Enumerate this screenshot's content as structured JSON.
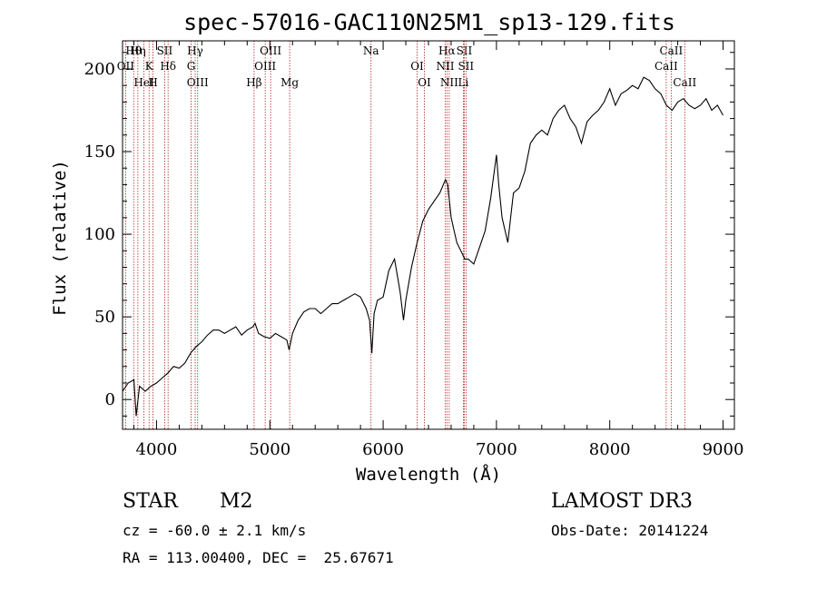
{
  "chart_data": {
    "type": "line",
    "title": "spec-57016-GAC110N25M1_sp13-129.fits",
    "xlabel": "Wavelength (Å)",
    "ylabel": "Flux (relative)",
    "xlim": [
      3700,
      9100
    ],
    "ylim": [
      -18,
      217
    ],
    "xticks": [
      4000,
      5000,
      6000,
      7000,
      8000,
      9000
    ],
    "yticks": [
      0,
      50,
      100,
      150,
      200
    ],
    "ytick_first_label": "200",
    "series": [
      {
        "name": "flux",
        "color": "#000000",
        "x": [
          3700,
          3750,
          3800,
          3820,
          3850,
          3900,
          3950,
          4000,
          4050,
          4100,
          4150,
          4200,
          4250,
          4300,
          4350,
          4400,
          4450,
          4500,
          4550,
          4600,
          4650,
          4700,
          4750,
          4800,
          4850,
          4870,
          4900,
          4950,
          5000,
          5050,
          5100,
          5150,
          5170,
          5200,
          5250,
          5300,
          5350,
          5400,
          5450,
          5500,
          5550,
          5600,
          5650,
          5700,
          5750,
          5800,
          5850,
          5880,
          5900,
          5920,
          5950,
          6000,
          6050,
          6100,
          6150,
          6180,
          6200,
          6250,
          6300,
          6350,
          6400,
          6450,
          6500,
          6550,
          6570,
          6600,
          6650,
          6700,
          6720,
          6750,
          6800,
          6850,
          6900,
          6950,
          7000,
          7020,
          7050,
          7100,
          7150,
          7200,
          7250,
          7300,
          7350,
          7400,
          7450,
          7500,
          7550,
          7600,
          7650,
          7700,
          7750,
          7800,
          7850,
          7900,
          7950,
          8000,
          8050,
          8100,
          8150,
          8200,
          8250,
          8300,
          8350,
          8400,
          8450,
          8500,
          8550,
          8600,
          8650,
          8700,
          8750,
          8800,
          8850,
          8900,
          8950,
          9000
        ],
        "y": [
          5,
          10,
          12,
          -10,
          8,
          5,
          8,
          10,
          13,
          16,
          20,
          19,
          22,
          28,
          32,
          35,
          39,
          42,
          42,
          40,
          42,
          44,
          39,
          42,
          44,
          46,
          40,
          38,
          37,
          40,
          38,
          36,
          30,
          40,
          48,
          53,
          55,
          55,
          52,
          55,
          58,
          58,
          60,
          62,
          64,
          62,
          55,
          48,
          28,
          52,
          60,
          62,
          78,
          85,
          65,
          48,
          60,
          80,
          95,
          108,
          115,
          120,
          125,
          133,
          130,
          110,
          95,
          88,
          85,
          85,
          82,
          92,
          102,
          122,
          148,
          130,
          110,
          95,
          125,
          128,
          138,
          155,
          160,
          163,
          160,
          170,
          175,
          178,
          170,
          165,
          155,
          168,
          172,
          175,
          180,
          188,
          178,
          185,
          187,
          190,
          188,
          195,
          193,
          188,
          185,
          178,
          175,
          180,
          182,
          178,
          176,
          178,
          182,
          175,
          178,
          172
        ]
      }
    ],
    "spectral_lines": [
      {
        "label": "Hθ",
        "x": 3798
      },
      {
        "label": "OII",
        "x": 3727
      },
      {
        "label": "HeI",
        "x": 3889
      },
      {
        "label": "Hη",
        "x": 3835
      },
      {
        "label": "K",
        "x": 3934
      },
      {
        "label": "H",
        "x": 3969
      },
      {
        "label": "SII",
        "x": 4072
      },
      {
        "label": "Hδ",
        "x": 4102
      },
      {
        "label": "OIII",
        "x": 4363
      },
      {
        "label": "Hγ",
        "x": 4341
      },
      {
        "label": "G",
        "x": 4305
      },
      {
        "label": "Hβ",
        "x": 4861
      },
      {
        "label": "OIII",
        "x": 5007
      },
      {
        "label": "OIII",
        "x": 4959
      },
      {
        "label": "Mg",
        "x": 5175
      },
      {
        "label": "Na",
        "x": 5893
      },
      {
        "label": "OI",
        "x": 6300
      },
      {
        "label": "OI",
        "x": 6364
      },
      {
        "label": "Hα",
        "x": 6563
      },
      {
        "label": "NII",
        "x": 6548
      },
      {
        "label": "NII",
        "x": 6583
      },
      {
        "label": "SII",
        "x": 6716
      },
      {
        "label": "SII",
        "x": 6731
      },
      {
        "label": "Li",
        "x": 6708
      },
      {
        "label": "CaII",
        "x": 8542
      },
      {
        "label": "CaII",
        "x": 8498
      },
      {
        "label": "CaII",
        "x": 8662
      }
    ]
  },
  "info": {
    "class_label": "STAR",
    "subclass": "M2",
    "survey": "LAMOST DR3",
    "cz": "cz = -60.0 ± 2.1 km/s",
    "obs_date": "Obs-Date: 20141224",
    "radec": "RA = 113.00400, DEC =  25.67671"
  },
  "colors": {
    "line_marker": "#b22222",
    "spectrum": "#000000"
  }
}
